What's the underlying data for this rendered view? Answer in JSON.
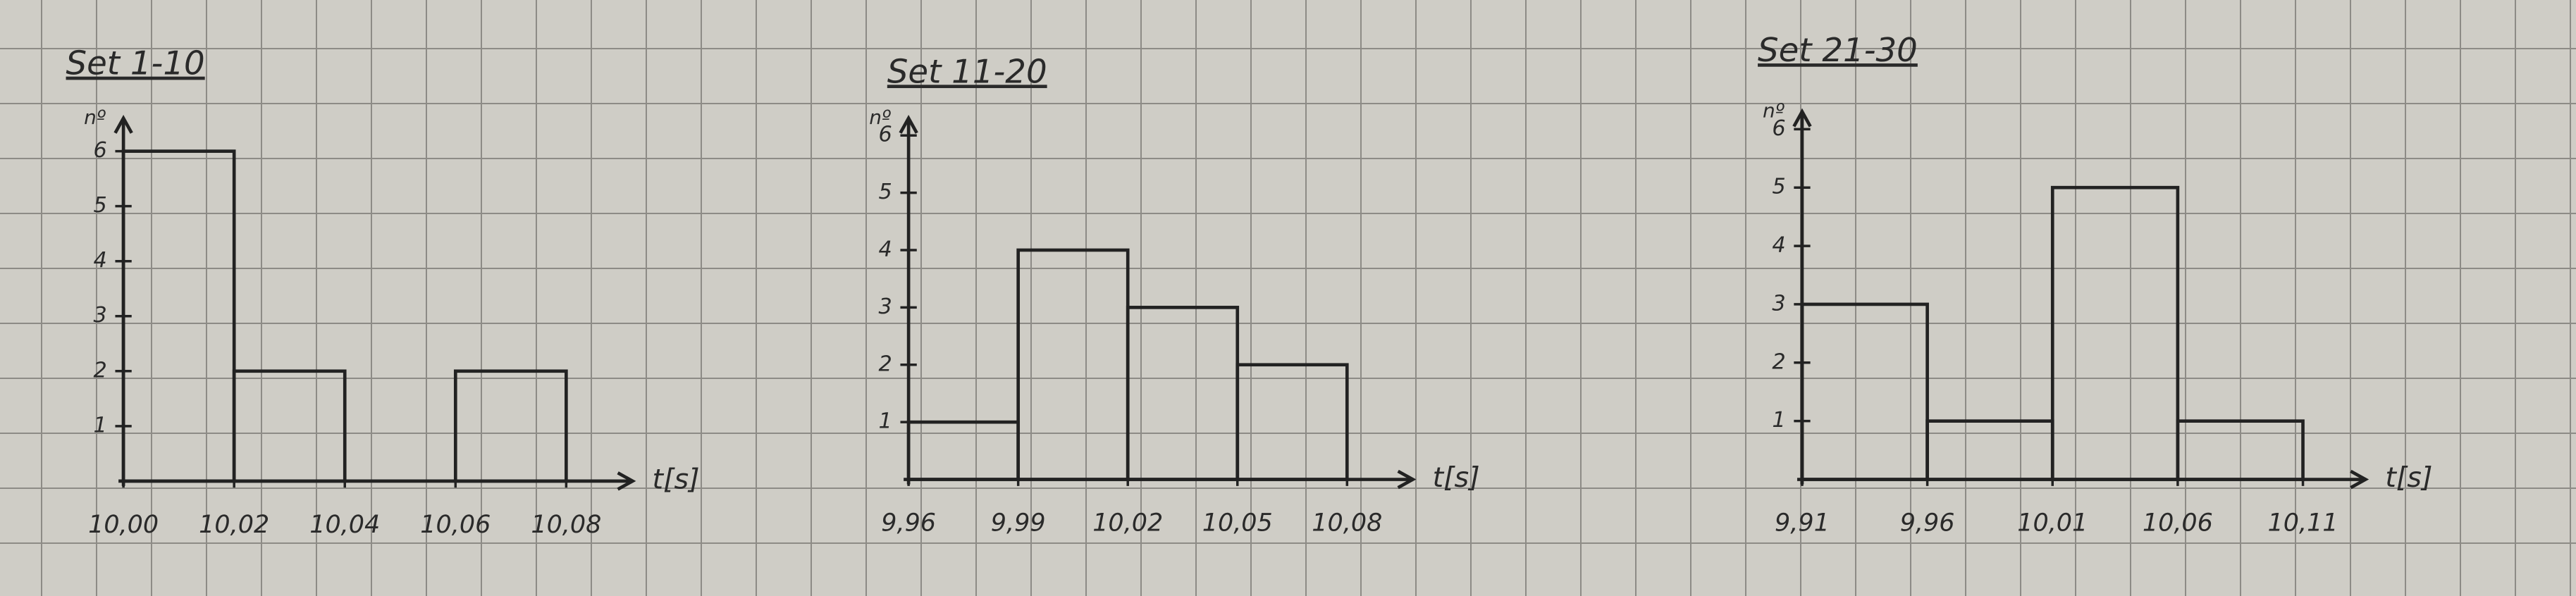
{
  "chart_data": [
    {
      "type": "histogram",
      "title": "Set 1-10",
      "y_label": "nº",
      "x_label": "t[s]",
      "color": "#222222",
      "bins": [
        10.0,
        10.02,
        10.04,
        10.06,
        10.08
      ],
      "counts": [
        6,
        2,
        0,
        2
      ],
      "xlim": [
        10.0,
        10.092
      ],
      "ylim": [
        0,
        6.6
      ],
      "xticks": [
        {
          "value": 10.0,
          "label": "10,00"
        },
        {
          "value": 10.02,
          "label": "10,02"
        },
        {
          "value": 10.04,
          "label": "10,04"
        },
        {
          "value": 10.06,
          "label": "10,06"
        },
        {
          "value": 10.08,
          "label": "10,08"
        }
      ],
      "yticks": [
        1,
        2,
        3,
        4,
        5,
        6
      ]
    },
    {
      "type": "histogram",
      "title": "Set 11-20",
      "y_label": "nº",
      "x_label": "t[s]",
      "color": "#222222",
      "bins": [
        9.96,
        9.99,
        10.02,
        10.05,
        10.08
      ],
      "counts": [
        1,
        4,
        3,
        2
      ],
      "xlim": [
        9.96,
        10.098
      ],
      "ylim": [
        0,
        6.3
      ],
      "xticks": [
        {
          "value": 9.96,
          "label": "9,96"
        },
        {
          "value": 9.99,
          "label": "9,99"
        },
        {
          "value": 10.02,
          "label": "10,02"
        },
        {
          "value": 10.05,
          "label": "10,05"
        },
        {
          "value": 10.08,
          "label": "10,08"
        }
      ],
      "yticks": [
        1,
        2,
        3,
        4,
        5,
        6
      ]
    },
    {
      "type": "histogram",
      "title": "Set 21-30",
      "y_label": "nº",
      "x_label": "t[s]",
      "color": "#222222",
      "bins": [
        9.91,
        9.96,
        10.01,
        10.06,
        10.11
      ],
      "counts": [
        3,
        1,
        5,
        1
      ],
      "xlim": [
        9.91,
        10.135
      ],
      "ylim": [
        0,
        6.3
      ],
      "xticks": [
        {
          "value": 9.91,
          "label": "9,91"
        },
        {
          "value": 9.96,
          "label": "9,96"
        },
        {
          "value": 10.01,
          "label": "10,01"
        },
        {
          "value": 10.06,
          "label": "10,06"
        },
        {
          "value": 10.11,
          "label": "10,11"
        }
      ],
      "yticks": [
        1,
        2,
        3,
        4,
        5,
        6
      ]
    }
  ]
}
